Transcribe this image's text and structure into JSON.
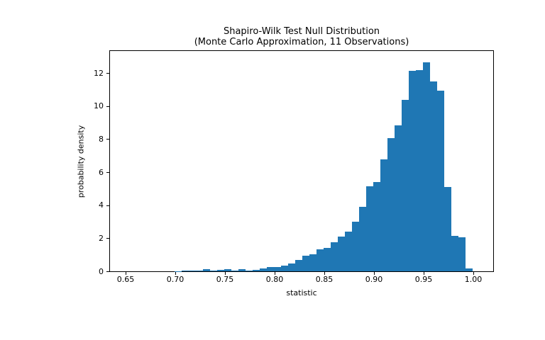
{
  "chart_data": {
    "type": "bar",
    "subtype": "histogram",
    "title": "Shapiro-Wilk Test Null Distribution",
    "subtitle": "(Monte Carlo Approximation, 11 Observations)",
    "xlabel": "statistic",
    "ylabel": "probability density",
    "bar_color": "#1f77b4",
    "background_color": "#ffffff",
    "text_color": "#000000",
    "grid": false,
    "legend": "none",
    "xlim": [
      0.6343,
      1.02
    ],
    "ylim": [
      0,
      13.34
    ],
    "xticks": [
      0.65,
      0.7,
      0.75,
      0.8,
      0.85,
      0.9,
      0.95,
      1.0
    ],
    "xtick_labels": [
      "0.65",
      "0.70",
      "0.75",
      "0.80",
      "0.85",
      "0.90",
      "0.95",
      "1.00"
    ],
    "yticks": [
      0,
      2,
      4,
      6,
      8,
      10,
      12
    ],
    "ytick_labels": [
      "0",
      "2",
      "4",
      "6",
      "8",
      "10",
      "12"
    ],
    "bins": {
      "start": 0.6993,
      "width": 0.0071429
    },
    "densities": [
      0.01,
      0.04,
      0.04,
      0.05,
      0.11,
      0.04,
      0.07,
      0.14,
      0.04,
      0.11,
      0.06,
      0.09,
      0.17,
      0.26,
      0.26,
      0.34,
      0.47,
      0.7,
      0.94,
      1.03,
      1.33,
      1.41,
      1.76,
      2.1,
      2.4,
      3.0,
      3.9,
      5.14,
      5.42,
      6.77,
      8.06,
      8.83,
      10.37,
      12.13,
      12.2,
      12.66,
      11.49,
      10.94,
      5.1,
      2.16,
      2.05,
      0.18
    ]
  }
}
